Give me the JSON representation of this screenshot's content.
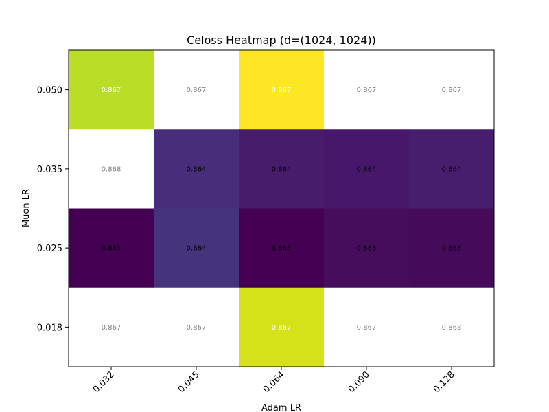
{
  "chart_data": {
    "type": "heatmap",
    "title": "Celoss Heatmap (d=(1024, 1024))",
    "xlabel": "Adam LR",
    "ylabel": "Muon LR",
    "x_categories": [
      "0.032",
      "0.045",
      "0.064",
      "0.090",
      "0.128"
    ],
    "y_categories": [
      "0.050",
      "0.035",
      "0.025",
      "0.018"
    ],
    "cell_labels": [
      [
        "0.867",
        "0.867",
        "0.867",
        "0.867",
        "0.867"
      ],
      [
        "0.868",
        "0.864",
        "0.864",
        "0.864",
        "0.864"
      ],
      [
        "0.863",
        "0.864",
        "0.863",
        "0.863",
        "0.863"
      ],
      [
        "0.867",
        "0.867",
        "0.867",
        "0.867",
        "0.868"
      ]
    ],
    "cell_colors": [
      [
        "#bade28",
        "#ffffff",
        "#fde725",
        "#ffffff",
        "#ffffff"
      ],
      [
        "#ffffff",
        "#472d7b",
        "#471c6a",
        "#46176b",
        "#471e6d"
      ],
      [
        "#440154",
        "#46337e",
        "#440154",
        "#450d5c",
        "#450b5a"
      ],
      [
        "#ffffff",
        "#ffffff",
        "#d5e21a",
        "#ffffff",
        "#ffffff"
      ]
    ],
    "label_colors": [
      [
        "#ffffff",
        "#808080",
        "#ffffff",
        "#808080",
        "#808080"
      ],
      [
        "#808080",
        "#000000",
        "#000000",
        "#000000",
        "#000000"
      ],
      [
        "#000000",
        "#000000",
        "#000000",
        "#000000",
        "#000000"
      ],
      [
        "#808080",
        "#808080",
        "#ffffff",
        "#808080",
        "#808080"
      ]
    ],
    "colormap": "viridis",
    "grid": false,
    "legend": "none"
  }
}
